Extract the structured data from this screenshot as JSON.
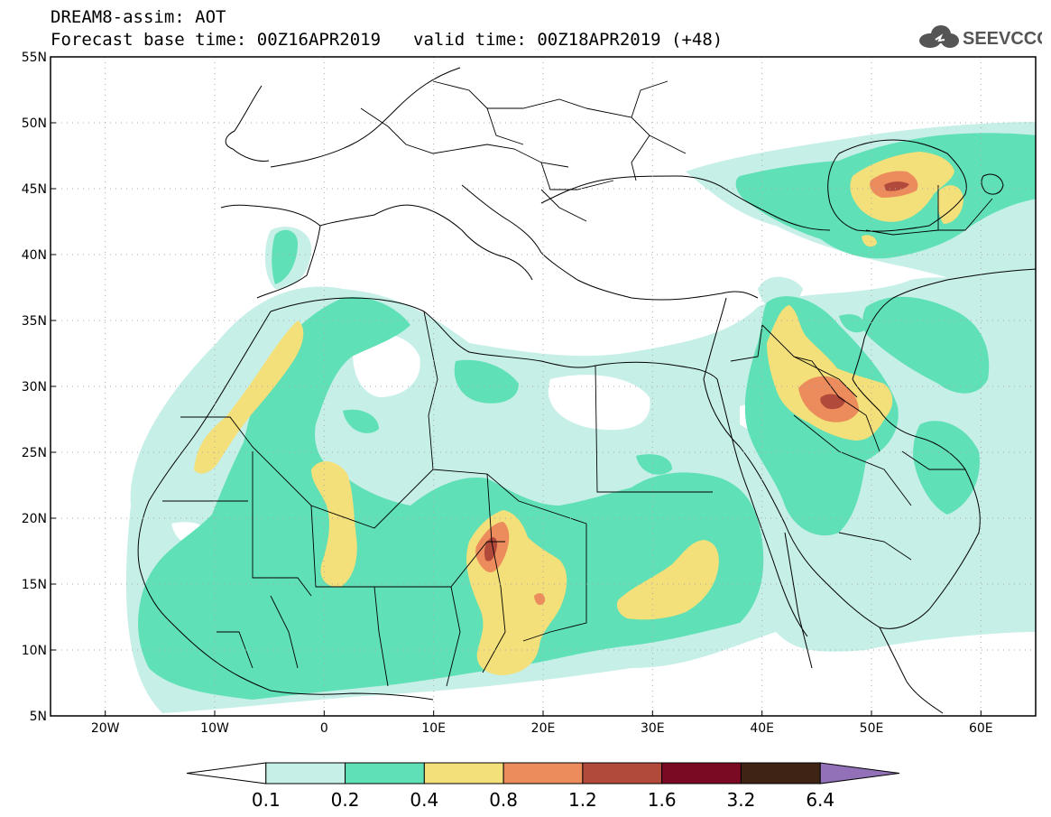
{
  "header": {
    "line1": "DREAM8-assim: AOT",
    "base_time": "Forecast base time: 00Z16APR2019",
    "valid_time": "valid time: 00Z18APR2019 (+48)"
  },
  "logo": {
    "text": "SEEVCCC",
    "icon": "cloud-icon"
  },
  "map": {
    "lon_labels": [
      "20W",
      "10W",
      "0",
      "10E",
      "20E",
      "30E",
      "40E",
      "50E",
      "60E"
    ],
    "lat_labels": [
      "55N",
      "50N",
      "45N",
      "40N",
      "35N",
      "30N",
      "25N",
      "20N",
      "15N",
      "10N",
      "5N"
    ],
    "lon_range": [
      -25,
      65
    ],
    "lat_range": [
      5,
      55
    ],
    "grid": "dotted"
  },
  "colorbar": {
    "labels": [
      "0.1",
      "0.2",
      "0.4",
      "0.8",
      "1.2",
      "1.6",
      "3.2",
      "6.4"
    ],
    "colors": [
      "#ffffff",
      "#c6efe8",
      "#5fe0b6",
      "#f3e07a",
      "#ec8c5c",
      "#b24a3c",
      "#7a0a24",
      "#3f2416",
      "#9271b8"
    ]
  },
  "colors": {
    "c1": "#c6efe8",
    "c2": "#5fe0b6",
    "c3": "#f3e07a",
    "c4": "#ec8c5c",
    "c5": "#b24a3c"
  }
}
